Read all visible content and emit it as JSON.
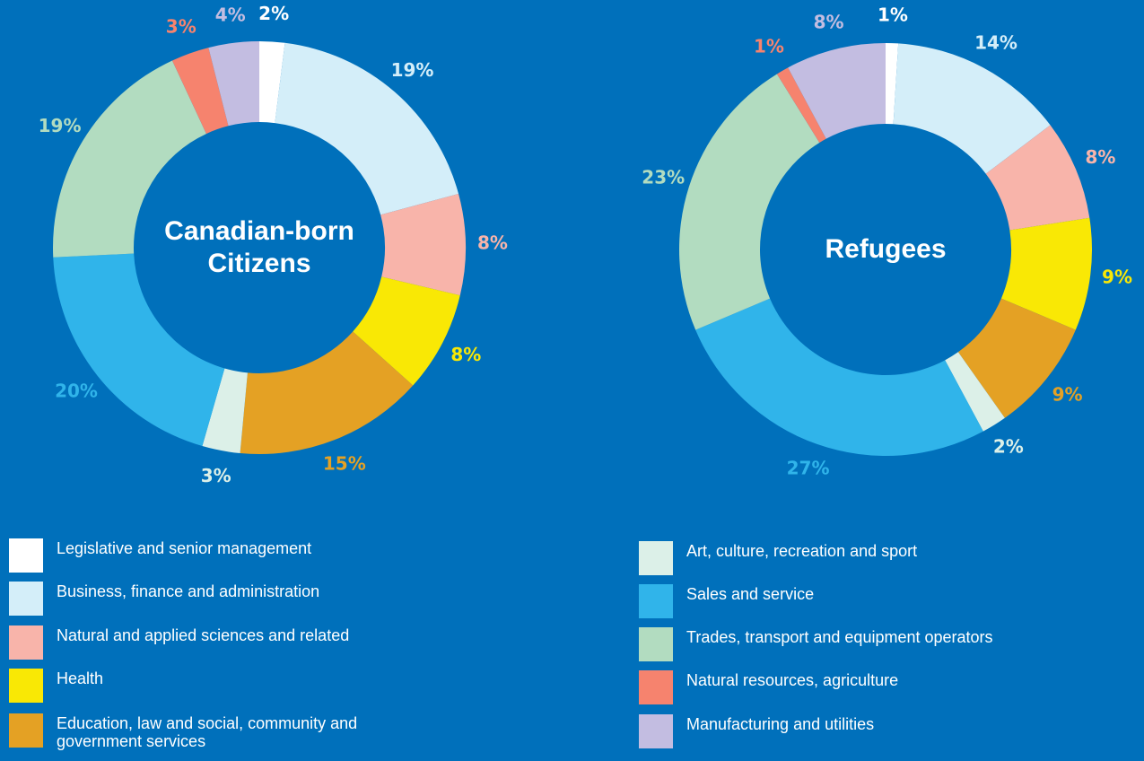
{
  "legend": {
    "categories": [
      "Legislative and senior management",
      "Business, finance and administration",
      "Natural and applied sciences and related",
      "Health",
      "Education, law and social, community and government services",
      "Art, culture, recreation and sport",
      "Sales and service",
      "Trades, transport and equipment operators",
      "Natural resources, agriculture",
      "Manufacturing and utilities"
    ],
    "colors": [
      "#ffffff",
      "#d4eef9",
      "#f8b4aa",
      "#f9e805",
      "#e4a124",
      "#dcf0e8",
      "#30b4ea",
      "#b2dcc0",
      "#f6836e",
      "#c3bde1"
    ]
  },
  "chart_data": [
    {
      "type": "pie",
      "title": "Canadian-born Citizens",
      "values": [
        2,
        19,
        8,
        8,
        15,
        3,
        20,
        19,
        3,
        4
      ],
      "value_labels": [
        "2%",
        "19%",
        "8%",
        "8%",
        "15%",
        "3%",
        "20%",
        "19%",
        "3%",
        "4%"
      ]
    },
    {
      "type": "pie",
      "title": "Refugees",
      "values": [
        1,
        14,
        8,
        9,
        9,
        2,
        27,
        23,
        1,
        8
      ],
      "value_labels": [
        "1%",
        "14%",
        "8%",
        "9%",
        "9%",
        "2%",
        "27%",
        "23%",
        "1%",
        "8%"
      ]
    }
  ]
}
